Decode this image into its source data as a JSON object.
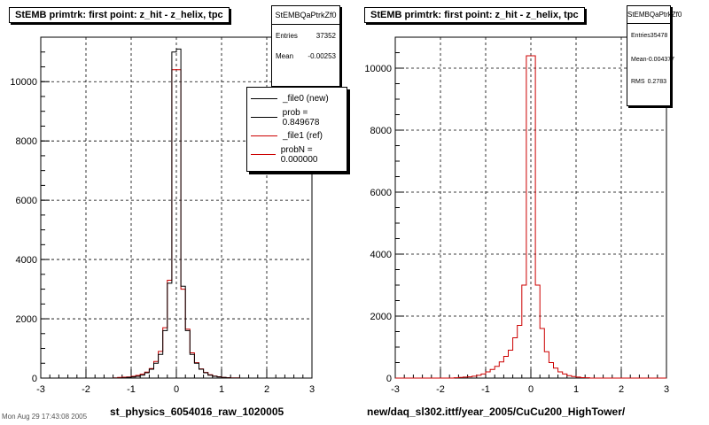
{
  "chart_data": [
    {
      "type": "histogram",
      "title": "StEMB primtrk: first point: z_hit - z_helix, tpc",
      "xlabel": "st_physics_6054016_raw_1020005",
      "xlim": [
        -3,
        3
      ],
      "ylim": [
        0,
        11500
      ],
      "x_ticks": [
        "-3",
        "-2",
        "-1",
        "0",
        "1",
        "2",
        "3"
      ],
      "y_ticks": [
        "0",
        "2000",
        "4000",
        "6000",
        "8000",
        "10000"
      ],
      "grid": true,
      "stats": {
        "name": "StEMBQaPtrkZf0",
        "rows": [
          {
            "label": "Entries",
            "value": "37352"
          },
          {
            "label": "Mean",
            "value": "-0.00253"
          }
        ]
      },
      "legend": [
        {
          "label": "_file0 (new)",
          "color": "#000000"
        },
        {
          "label": "prob = 0.849678",
          "color": "#000000"
        },
        {
          "label": "_file1 (ref)",
          "color": "#cc0000"
        },
        {
          "label": "probN = 0.000000",
          "color": "#cc0000"
        }
      ],
      "bin_edges": [
        -3.0,
        -2.9,
        -2.8,
        -2.7,
        -2.6,
        -2.5,
        -2.4,
        -2.3,
        -2.2,
        -2.1,
        -2.0,
        -1.9,
        -1.8,
        -1.7,
        -1.6,
        -1.5,
        -1.4,
        -1.3,
        -1.2,
        -1.1,
        -1.0,
        -0.9,
        -0.8,
        -0.7,
        -0.6,
        -0.5,
        -0.4,
        -0.3,
        -0.2,
        -0.1,
        0.0,
        0.1,
        0.2,
        0.3,
        0.4,
        0.5,
        0.6,
        0.7,
        0.8,
        0.9,
        1.0,
        1.1,
        1.2,
        1.3,
        1.4,
        1.5,
        1.6,
        1.7,
        1.8,
        1.9,
        2.0,
        2.1,
        2.2,
        2.3,
        2.4,
        2.5,
        2.6,
        2.7,
        2.8,
        2.9,
        3.0
      ],
      "series": [
        {
          "name": "_file0 (new)",
          "color": "#000000",
          "values": [
            0,
            0,
            0,
            0,
            0,
            0,
            0,
            0,
            0,
            0,
            0,
            0,
            0,
            0,
            0,
            0,
            0,
            0,
            10,
            20,
            40,
            60,
            100,
            180,
            300,
            500,
            800,
            1600,
            3200,
            11000,
            11100,
            3100,
            1600,
            800,
            500,
            300,
            180,
            100,
            60,
            40,
            20,
            10,
            0,
            0,
            0,
            0,
            0,
            0,
            0,
            0,
            0,
            0,
            0,
            0,
            0,
            0,
            0,
            0,
            0,
            0
          ]
        },
        {
          "name": "_file1 (ref)",
          "color": "#cc0000",
          "values": [
            0,
            0,
            0,
            0,
            0,
            0,
            0,
            0,
            0,
            0,
            0,
            0,
            0,
            0,
            0,
            0,
            10,
            20,
            30,
            40,
            60,
            90,
            130,
            200,
            320,
            560,
            900,
            1700,
            3300,
            10400,
            10400,
            3000,
            1650,
            850,
            520,
            310,
            190,
            110,
            70,
            45,
            25,
            15,
            10,
            5,
            0,
            0,
            0,
            0,
            0,
            0,
            0,
            0,
            0,
            0,
            0,
            0,
            0,
            0,
            0,
            0
          ]
        }
      ]
    },
    {
      "type": "histogram",
      "title": "StEMB primtrk: first point: z_hit - z_helix, tpc",
      "xlabel": "new/daq_sl302.ittf/year_2005/CuCu200_HighTower/",
      "xlim": [
        -3,
        3
      ],
      "ylim": [
        0,
        11000
      ],
      "x_ticks": [
        "-3",
        "-2",
        "-1",
        "0",
        "1",
        "2",
        "3"
      ],
      "y_ticks": [
        "0",
        "2000",
        "4000",
        "6000",
        "8000",
        "10000"
      ],
      "grid": true,
      "stats": {
        "name": "StEMBQaPtrkZf0",
        "rows": [
          {
            "label": "Entries",
            "value": "35478"
          },
          {
            "label": "Mean",
            "value": "-0.004377"
          },
          {
            "label": "RMS",
            "value": "0.2783"
          }
        ]
      },
      "bin_edges": [
        -3.0,
        -2.9,
        -2.8,
        -2.7,
        -2.6,
        -2.5,
        -2.4,
        -2.3,
        -2.2,
        -2.1,
        -2.0,
        -1.9,
        -1.8,
        -1.7,
        -1.6,
        -1.5,
        -1.4,
        -1.3,
        -1.2,
        -1.1,
        -1.0,
        -0.9,
        -0.8,
        -0.7,
        -0.6,
        -0.5,
        -0.4,
        -0.3,
        -0.2,
        -0.1,
        0.0,
        0.1,
        0.2,
        0.3,
        0.4,
        0.5,
        0.6,
        0.7,
        0.8,
        0.9,
        1.0,
        1.1,
        1.2,
        1.3,
        1.4,
        1.5,
        1.6,
        1.7,
        1.8,
        1.9,
        2.0,
        2.1,
        2.2,
        2.3,
        2.4,
        2.5,
        2.6,
        2.7,
        2.8,
        2.9,
        3.0
      ],
      "series": [
        {
          "color": "#cc0000",
          "values": [
            0,
            0,
            0,
            0,
            0,
            0,
            0,
            0,
            0,
            0,
            0,
            0,
            0,
            10,
            20,
            30,
            40,
            60,
            90,
            130,
            200,
            280,
            380,
            520,
            700,
            900,
            1300,
            1700,
            3000,
            10400,
            10400,
            3000,
            1600,
            850,
            500,
            320,
            200,
            130,
            80,
            50,
            30,
            15,
            10,
            0,
            0,
            0,
            0,
            0,
            0,
            0,
            0,
            0,
            0,
            0,
            0,
            0,
            0,
            0,
            0,
            0
          ]
        }
      ]
    }
  ],
  "footer_text": "Mon Aug 29 17:43:08 2005"
}
